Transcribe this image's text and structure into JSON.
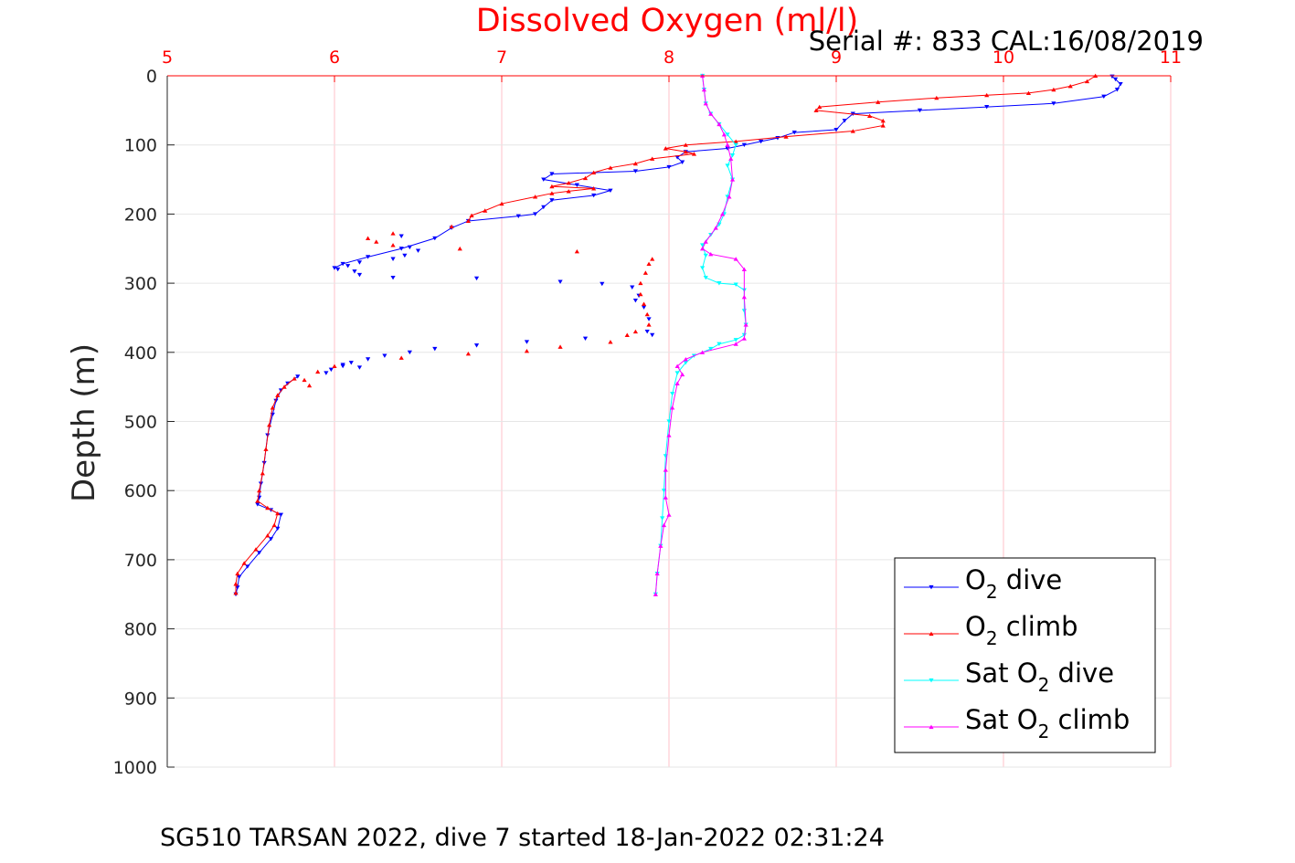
{
  "title": "Dissolved Oxygen (ml/l)",
  "serial_text": "Serial #: 833  CAL:16/08/2019",
  "caption": "SG510 TARSAN 2022, dive 7 started 18-Jan-2022 02:31:24",
  "chart_data": {
    "type": "scatter",
    "title": "Dissolved Oxygen (ml/l)",
    "xlabel": "",
    "ylabel": "Depth (m)",
    "xlim": [
      5,
      11
    ],
    "ylim": [
      0,
      1000
    ],
    "y_reversed": true,
    "x_axis_position": "top",
    "x_ticks": [
      5,
      6,
      7,
      8,
      9,
      10,
      11
    ],
    "y_ticks": [
      0,
      100,
      200,
      300,
      400,
      500,
      600,
      700,
      800,
      900,
      1000
    ],
    "x_tick_color": "#ff0000",
    "grid_color": "#ffc0c8",
    "grid": true,
    "legend_position": "bottom-right",
    "series": [
      {
        "name": "O2 dive",
        "legend_main": "O",
        "legend_sub": "2",
        "legend_rest": " dive",
        "color": "#0000ff",
        "marker": "triangle-down",
        "connected": true,
        "points": [
          [
            10.65,
            1
          ],
          [
            10.67,
            5
          ],
          [
            10.7,
            12
          ],
          [
            10.68,
            20
          ],
          [
            10.6,
            30
          ],
          [
            10.3,
            40
          ],
          [
            9.9,
            45
          ],
          [
            9.5,
            50
          ],
          [
            9.1,
            55
          ],
          [
            9.05,
            65
          ],
          [
            9.0,
            78
          ],
          [
            8.75,
            82
          ],
          [
            8.65,
            90
          ],
          [
            8.55,
            95
          ],
          [
            8.45,
            100
          ],
          [
            8.35,
            105
          ],
          [
            8.1,
            110
          ],
          [
            8.05,
            118
          ],
          [
            8.08,
            125
          ],
          [
            8.0,
            132
          ],
          [
            7.8,
            138
          ],
          [
            7.3,
            142
          ],
          [
            7.25,
            150
          ],
          [
            7.45,
            158
          ],
          [
            7.65,
            166
          ],
          [
            7.55,
            173
          ],
          [
            7.3,
            180
          ],
          [
            7.25,
            190
          ],
          [
            7.2,
            200
          ],
          [
            7.1,
            203
          ],
          [
            6.8,
            210
          ],
          [
            6.7,
            220
          ],
          [
            6.6,
            235
          ],
          [
            6.4,
            250
          ],
          [
            6.2,
            262
          ],
          [
            6.05,
            272
          ],
          [
            6.0,
            278
          ]
        ]
      },
      {
        "name": "O2 climb",
        "legend_main": "O",
        "legend_sub": "2",
        "legend_rest": " climb",
        "color": "#ff0000",
        "marker": "triangle-up",
        "connected": true,
        "points": [
          [
            10.55,
            0
          ],
          [
            10.5,
            8
          ],
          [
            10.4,
            15
          ],
          [
            10.3,
            20
          ],
          [
            10.15,
            25
          ],
          [
            9.9,
            28
          ],
          [
            9.6,
            32
          ],
          [
            9.25,
            38
          ],
          [
            8.9,
            45
          ],
          [
            8.88,
            50
          ],
          [
            9.2,
            58
          ],
          [
            9.28,
            65
          ],
          [
            9.28,
            72
          ],
          [
            9.1,
            80
          ],
          [
            8.7,
            88
          ],
          [
            8.4,
            95
          ],
          [
            8.1,
            100
          ],
          [
            7.98,
            105
          ],
          [
            8.1,
            110
          ],
          [
            8.15,
            113
          ],
          [
            7.9,
            120
          ],
          [
            7.8,
            127
          ],
          [
            7.65,
            133
          ],
          [
            7.55,
            140
          ],
          [
            7.5,
            148
          ],
          [
            7.4,
            155
          ],
          [
            7.3,
            160
          ],
          [
            7.55,
            163
          ],
          [
            7.4,
            167
          ],
          [
            7.3,
            170
          ],
          [
            7.2,
            175
          ],
          [
            7.0,
            185
          ],
          [
            6.9,
            195
          ],
          [
            6.82,
            202
          ],
          [
            6.8,
            210
          ]
        ]
      },
      {
        "name": "O2 dive (scattered)",
        "color": "#0000ff",
        "marker": "triangle-down",
        "connected": false,
        "in_legend": false,
        "points": [
          [
            6.4,
            232
          ],
          [
            6.45,
            248
          ],
          [
            6.5,
            253
          ],
          [
            6.42,
            260
          ],
          [
            6.35,
            265
          ],
          [
            6.15,
            270
          ],
          [
            6.08,
            275
          ],
          [
            6.12,
            283
          ],
          [
            6.02,
            280
          ],
          [
            6.15,
            288
          ],
          [
            6.35,
            292
          ],
          [
            6.85,
            293
          ],
          [
            7.35,
            298
          ],
          [
            7.6,
            301
          ],
          [
            7.78,
            306
          ],
          [
            7.82,
            318
          ],
          [
            7.8,
            325
          ],
          [
            7.85,
            335
          ],
          [
            7.88,
            352
          ],
          [
            7.87,
            370
          ],
          [
            7.9,
            375
          ],
          [
            7.5,
            380
          ],
          [
            7.15,
            385
          ],
          [
            6.85,
            390
          ],
          [
            6.6,
            395
          ],
          [
            6.45,
            400
          ],
          [
            6.3,
            405
          ],
          [
            6.2,
            410
          ],
          [
            6.1,
            415
          ],
          [
            6.05,
            420
          ],
          [
            5.98,
            425
          ],
          [
            5.95,
            430
          ],
          [
            6.05,
            418
          ],
          [
            6.15,
            422
          ]
        ]
      },
      {
        "name": "O2 climb (scattered)",
        "color": "#ff0000",
        "marker": "triangle-up",
        "connected": false,
        "in_legend": false,
        "points": [
          [
            6.7,
            218
          ],
          [
            6.35,
            228
          ],
          [
            6.2,
            235
          ],
          [
            6.25,
            240
          ],
          [
            6.35,
            245
          ],
          [
            6.75,
            250
          ],
          [
            7.45,
            254
          ],
          [
            7.9,
            265
          ],
          [
            7.88,
            272
          ],
          [
            7.86,
            285
          ],
          [
            7.83,
            300
          ],
          [
            7.83,
            316
          ],
          [
            7.85,
            330
          ],
          [
            7.87,
            345
          ],
          [
            7.88,
            360
          ],
          [
            7.8,
            370
          ],
          [
            7.75,
            375
          ],
          [
            7.65,
            385
          ],
          [
            7.35,
            392
          ],
          [
            7.15,
            398
          ],
          [
            6.8,
            402
          ],
          [
            6.4,
            408
          ],
          [
            6.0,
            420
          ],
          [
            5.9,
            428
          ],
          [
            5.82,
            440
          ],
          [
            5.85,
            448
          ]
        ]
      },
      {
        "name": "O2 deep",
        "color": "#0000ff",
        "marker": "triangle-down",
        "connected": true,
        "in_legend": false,
        "points": [
          [
            5.78,
            435
          ],
          [
            5.72,
            445
          ],
          [
            5.68,
            455
          ],
          [
            5.65,
            470
          ],
          [
            5.63,
            490
          ],
          [
            5.6,
            520
          ],
          [
            5.58,
            560
          ],
          [
            5.56,
            590
          ],
          [
            5.55,
            610
          ],
          [
            5.54,
            620
          ],
          [
            5.62,
            628
          ],
          [
            5.68,
            635
          ],
          [
            5.66,
            655
          ],
          [
            5.62,
            670
          ],
          [
            5.55,
            690
          ],
          [
            5.48,
            710
          ],
          [
            5.43,
            725
          ],
          [
            5.42,
            740
          ],
          [
            5.41,
            750
          ]
        ]
      },
      {
        "name": "O2 deep climb",
        "color": "#ff0000",
        "marker": "triangle-up",
        "connected": true,
        "in_legend": false,
        "points": [
          [
            5.76,
            438
          ],
          [
            5.7,
            450
          ],
          [
            5.66,
            462
          ],
          [
            5.63,
            480
          ],
          [
            5.61,
            505
          ],
          [
            5.59,
            540
          ],
          [
            5.57,
            575
          ],
          [
            5.55,
            600
          ],
          [
            5.54,
            615
          ],
          [
            5.6,
            625
          ],
          [
            5.66,
            633
          ],
          [
            5.64,
            650
          ],
          [
            5.6,
            665
          ],
          [
            5.53,
            685
          ],
          [
            5.46,
            705
          ],
          [
            5.42,
            720
          ],
          [
            5.41,
            735
          ],
          [
            5.41,
            748
          ]
        ]
      },
      {
        "name": "Sat O2 dive",
        "legend_main": "Sat O",
        "legend_sub": "2",
        "legend_rest": " dive",
        "color": "#00ffff",
        "marker": "triangle-down",
        "connected": true,
        "points": [
          [
            8.2,
            0
          ],
          [
            8.21,
            20
          ],
          [
            8.22,
            40
          ],
          [
            8.25,
            55
          ],
          [
            8.3,
            70
          ],
          [
            8.35,
            85
          ],
          [
            8.4,
            100
          ],
          [
            8.38,
            115
          ],
          [
            8.35,
            130
          ],
          [
            8.38,
            150
          ],
          [
            8.35,
            175
          ],
          [
            8.33,
            200
          ],
          [
            8.3,
            215
          ],
          [
            8.25,
            230
          ],
          [
            8.2,
            245
          ],
          [
            8.22,
            260
          ],
          [
            8.2,
            278
          ],
          [
            8.22,
            292
          ],
          [
            8.3,
            300
          ],
          [
            8.4,
            302
          ],
          [
            8.45,
            310
          ],
          [
            8.45,
            340
          ],
          [
            8.46,
            360
          ],
          [
            8.45,
            375
          ],
          [
            8.4,
            382
          ],
          [
            8.3,
            388
          ],
          [
            8.25,
            395
          ],
          [
            8.15,
            405
          ],
          [
            8.1,
            415
          ],
          [
            8.05,
            430
          ],
          [
            8.02,
            460
          ],
          [
            8.0,
            500
          ],
          [
            7.98,
            550
          ],
          [
            7.97,
            600
          ],
          [
            7.96,
            640
          ],
          [
            7.95,
            680
          ],
          [
            7.93,
            720
          ],
          [
            7.92,
            750
          ]
        ]
      },
      {
        "name": "Sat O2 climb",
        "legend_main": "Sat O",
        "legend_sub": "2",
        "legend_rest": " climb",
        "color": "#ff00ff",
        "marker": "triangle-up",
        "connected": true,
        "points": [
          [
            8.2,
            0
          ],
          [
            8.21,
            20
          ],
          [
            8.22,
            40
          ],
          [
            8.25,
            55
          ],
          [
            8.3,
            70
          ],
          [
            8.33,
            85
          ],
          [
            8.35,
            100
          ],
          [
            8.37,
            120
          ],
          [
            8.38,
            150
          ],
          [
            8.36,
            175
          ],
          [
            8.32,
            200
          ],
          [
            8.28,
            220
          ],
          [
            8.22,
            240
          ],
          [
            8.2,
            250
          ],
          [
            8.25,
            258
          ],
          [
            8.4,
            265
          ],
          [
            8.45,
            280
          ],
          [
            8.45,
            320
          ],
          [
            8.46,
            360
          ],
          [
            8.45,
            380
          ],
          [
            8.4,
            388
          ],
          [
            8.2,
            400
          ],
          [
            8.1,
            410
          ],
          [
            8.05,
            420
          ],
          [
            8.08,
            432
          ],
          [
            8.05,
            445
          ],
          [
            8.02,
            480
          ],
          [
            8.0,
            520
          ],
          [
            7.98,
            570
          ],
          [
            7.98,
            610
          ],
          [
            8.0,
            635
          ],
          [
            7.97,
            650
          ],
          [
            7.95,
            680
          ],
          [
            7.93,
            720
          ],
          [
            7.92,
            750
          ]
        ]
      }
    ]
  }
}
